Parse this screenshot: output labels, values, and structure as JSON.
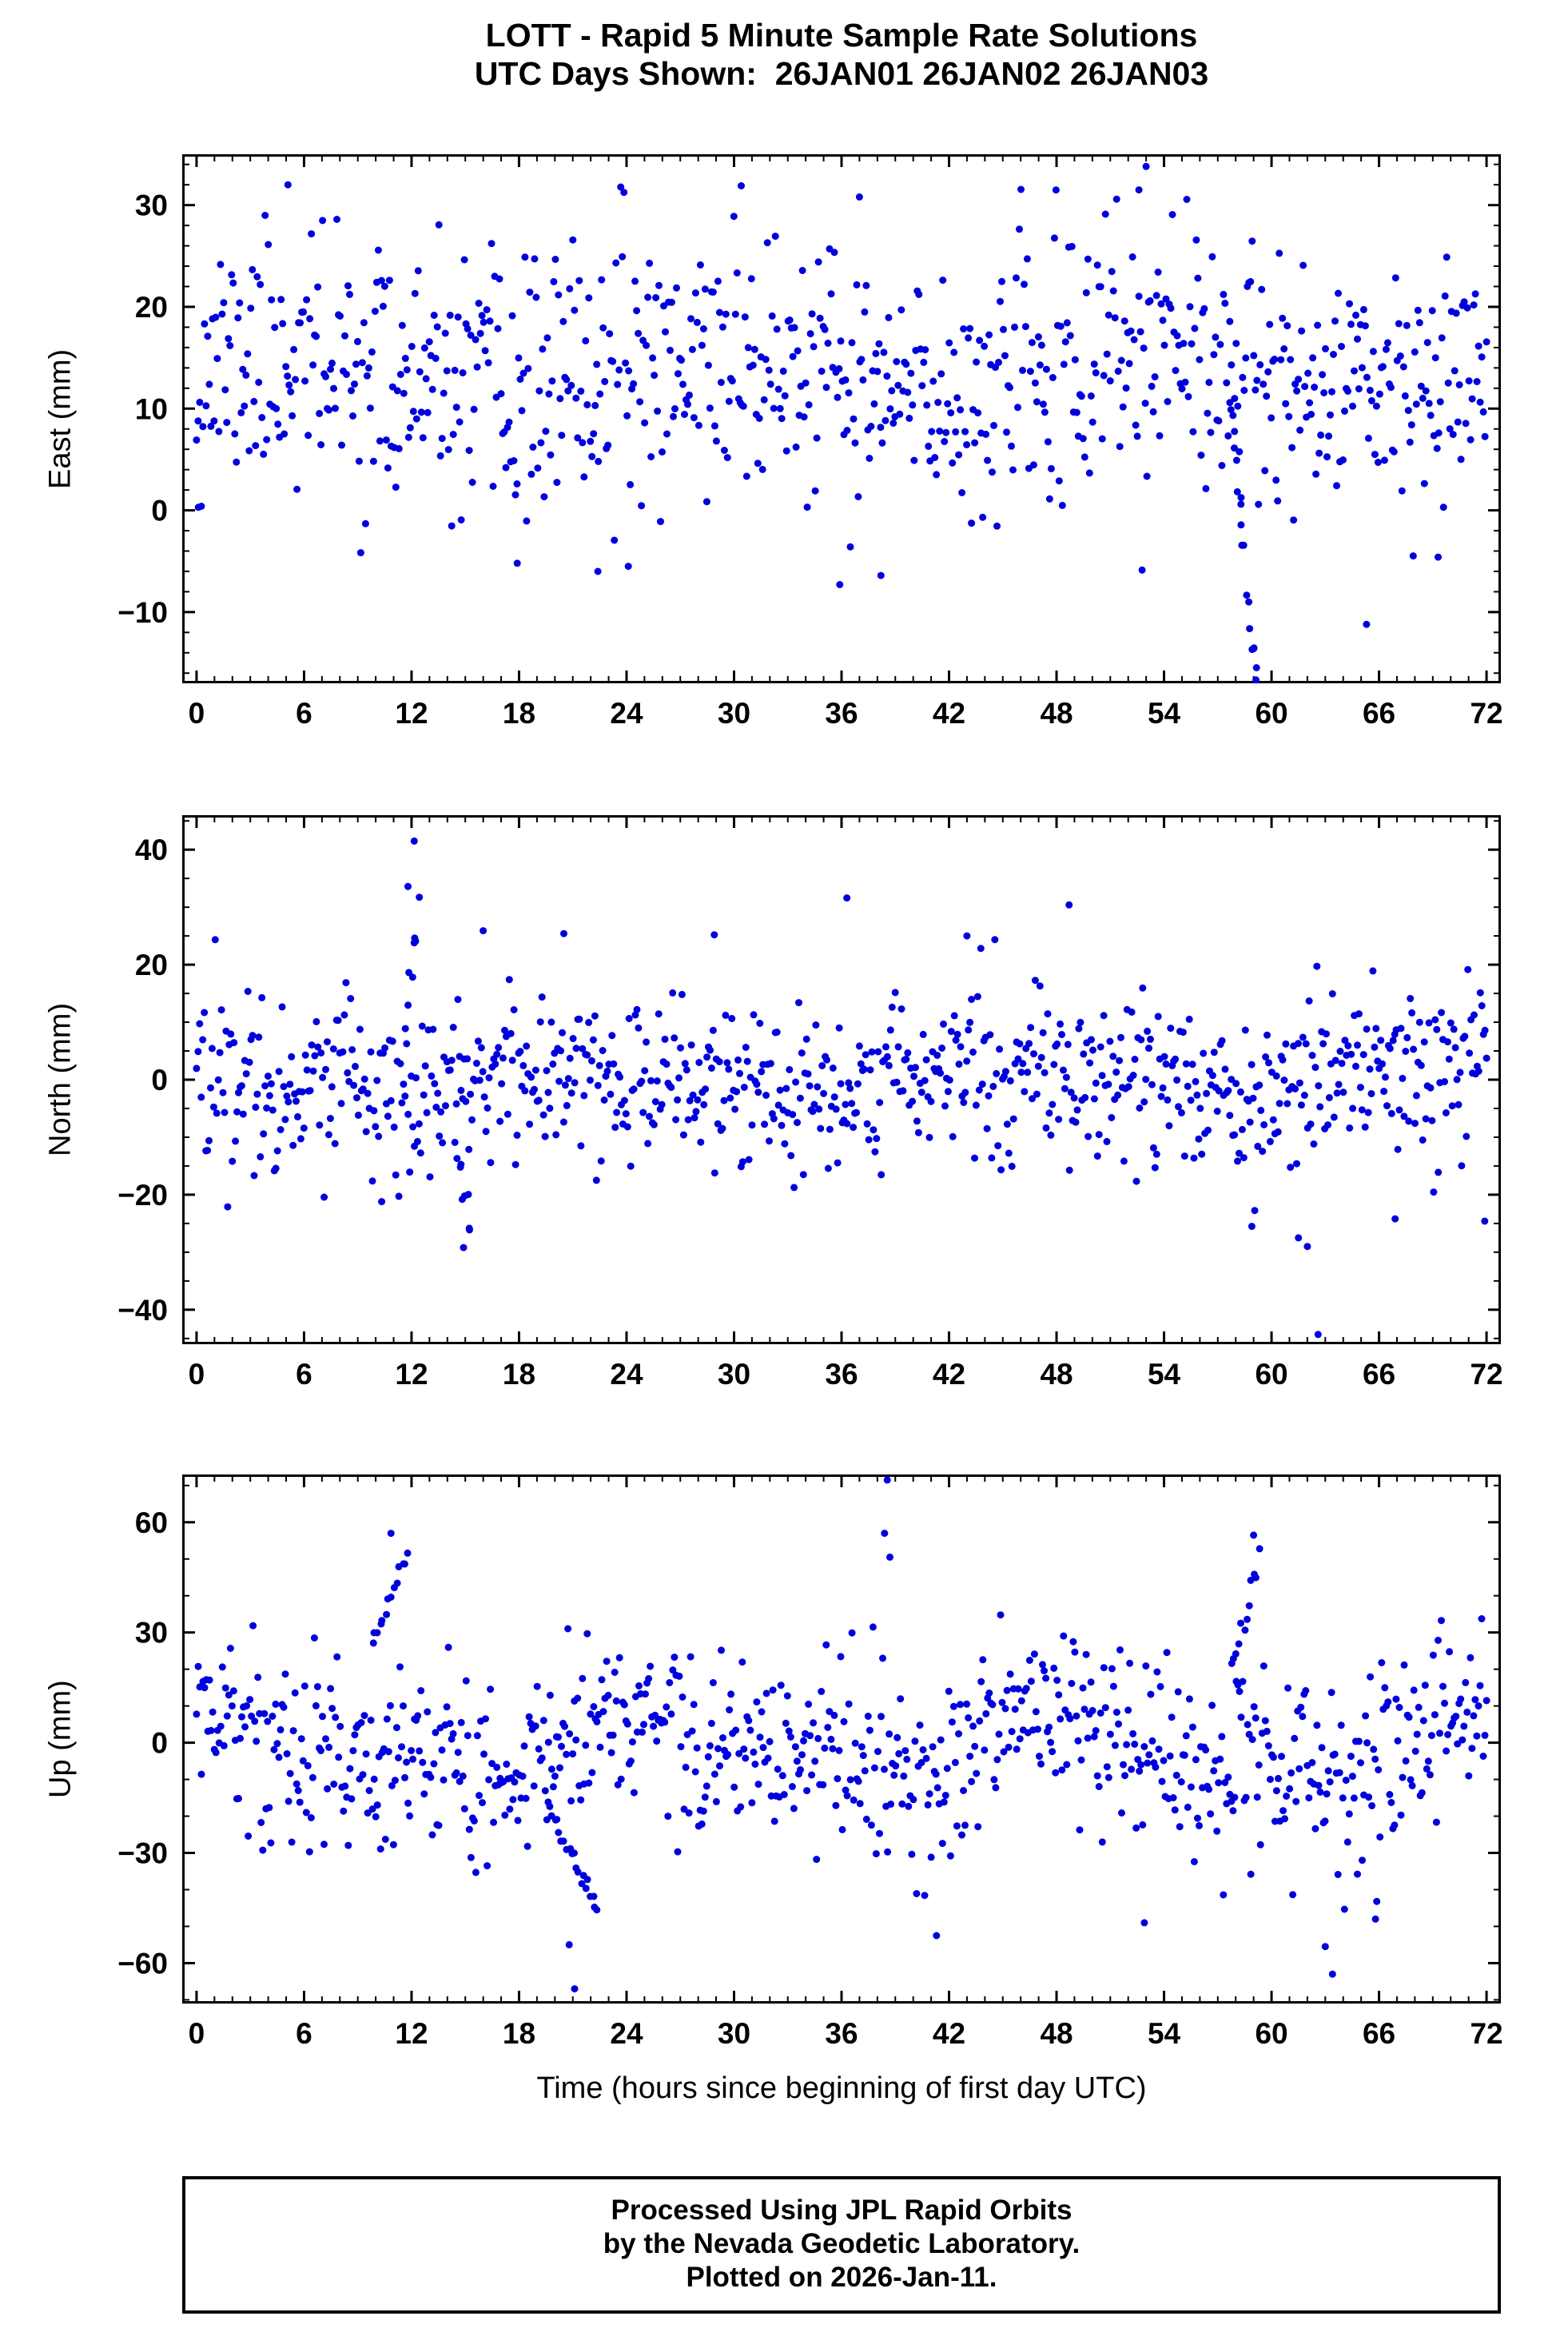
{
  "header": {
    "title_line1": "LOTT - Rapid 5 Minute Sample Rate Solutions",
    "title_line2": "UTC Days Shown:  26JAN01 26JAN02 26JAN03"
  },
  "footer": {
    "line1": "Processed Using JPL Rapid Orbits",
    "line2": "by the Nevada Geodetic Laboratory.",
    "line3": "Plotted on 2026-Jan-11."
  },
  "style": {
    "point_color": "#0000dd",
    "axis_color": "#000000",
    "background": "#ffffff"
  },
  "chart_data": [
    {
      "type": "scatter",
      "name": "east",
      "ylabel": "East (mm)",
      "xlabel": "",
      "xlim": [
        -0.8,
        72.8
      ],
      "ylim": [
        -17,
        35
      ],
      "xticks": [
        0,
        6,
        12,
        18,
        24,
        30,
        36,
        42,
        48,
        54,
        60,
        66,
        72
      ],
      "yticks": [
        -10,
        0,
        10,
        20,
        30
      ],
      "xminor": 1,
      "yminor": 2,
      "generator": {
        "seed": 11,
        "count": 810,
        "mean": 13,
        "noise_std": 6.2,
        "sinusoids": [
          {
            "period_h": 24,
            "amplitude": 2,
            "phase_rad": 0.5
          }
        ],
        "clip": [
          -6.5,
          32.5
        ]
      },
      "streaks": [
        {
          "x0": 57.7,
          "x1": 59.2,
          "y0": 11,
          "y1": -18.5,
          "n": 18
        }
      ],
      "outliers": [
        [
          53.0,
          33.8
        ],
        [
          52.6,
          31.5
        ],
        [
          5.1,
          32.0
        ],
        [
          30.4,
          31.9
        ],
        [
          37.0,
          30.8
        ],
        [
          65.3,
          -11.2
        ],
        [
          35.9,
          -7.3
        ],
        [
          38.2,
          -6.4
        ],
        [
          22.4,
          -6.0
        ],
        [
          17.9,
          -5.2
        ],
        [
          24.1,
          -5.5
        ],
        [
          69.3,
          -4.6
        ],
        [
          0.1,
          0.3
        ]
      ]
    },
    {
      "type": "scatter",
      "name": "north",
      "ylabel": "North (mm)",
      "xlabel": "",
      "xlim": [
        -0.8,
        72.8
      ],
      "ylim": [
        -46,
        46
      ],
      "xticks": [
        0,
        6,
        12,
        18,
        24,
        30,
        36,
        42,
        48,
        54,
        60,
        66,
        72
      ],
      "yticks": [
        -40,
        -20,
        0,
        20,
        40
      ],
      "xminor": 1,
      "yminor": 5,
      "generator": {
        "seed": 22,
        "count": 830,
        "mean": 0,
        "noise_std": 7.4,
        "sinusoids": [
          {
            "period_h": 24,
            "amplitude": 1.5,
            "phase_rad": 2.0
          }
        ],
        "clip": [
          -23,
          24.5
        ]
      },
      "streaks": [
        {
          "x0": 11.7,
          "x1": 12.4,
          "y0": 12,
          "y1": 30,
          "n": 8
        },
        {
          "x0": 14.6,
          "x1": 15.3,
          "y0": -12,
          "y1": -26,
          "n": 8
        }
      ],
      "outliers": [
        [
          12.15,
          41.5
        ],
        [
          11.8,
          33.6
        ],
        [
          14.9,
          -29.2
        ],
        [
          62.6,
          -44.3
        ],
        [
          62.0,
          -29.0
        ],
        [
          61.5,
          -27.5
        ],
        [
          58.9,
          -25.5
        ],
        [
          36.3,
          31.6
        ],
        [
          48.7,
          30.4
        ],
        [
          66.9,
          -24.2
        ],
        [
          71.9,
          -24.6
        ],
        [
          16.0,
          25.9
        ],
        [
          20.5,
          25.4
        ],
        [
          28.9,
          25.2
        ],
        [
          43.0,
          25.0
        ]
      ]
    },
    {
      "type": "scatter",
      "name": "up",
      "ylabel": "Up (mm)",
      "xlabel": "Time (hours since beginning of first day UTC)",
      "xlim": [
        -0.8,
        72.8
      ],
      "ylim": [
        -71,
        73
      ],
      "xticks": [
        0,
        6,
        12,
        18,
        24,
        30,
        36,
        42,
        48,
        54,
        60,
        66,
        72
      ],
      "yticks": [
        -60,
        -30,
        0,
        30,
        60
      ],
      "xminor": 1,
      "yminor": 10,
      "generator": {
        "seed": 33,
        "count": 800,
        "mean": -2,
        "noise_std": 12.5,
        "sinusoids": [
          {
            "period_h": 24,
            "amplitude": 7,
            "phase_rad": 1.31
          },
          {
            "period_h": 12,
            "amplitude": 4.5,
            "phase_rad": 2.09
          }
        ],
        "clip": [
          -47,
          46
        ]
      },
      "streaks": [
        {
          "x0": 19.6,
          "x1": 22.4,
          "y0": -18,
          "y1": -45,
          "n": 22
        },
        {
          "x0": 9.8,
          "x1": 11.8,
          "y0": 25,
          "y1": 52,
          "n": 14
        },
        {
          "x0": 57.8,
          "x1": 59.3,
          "y0": 20,
          "y1": 50,
          "n": 12
        }
      ],
      "outliers": [
        [
          38.55,
          71.5
        ],
        [
          38.4,
          57.0
        ],
        [
          38.7,
          50.5
        ],
        [
          10.85,
          57.0
        ],
        [
          59.0,
          56.5
        ],
        [
          21.1,
          -67.0
        ],
        [
          20.8,
          -55.0
        ],
        [
          63.4,
          -63.0
        ],
        [
          63.0,
          -55.5
        ],
        [
          41.3,
          -52.5
        ],
        [
          52.9,
          -49.0
        ],
        [
          65.8,
          -48.0
        ]
      ]
    }
  ]
}
